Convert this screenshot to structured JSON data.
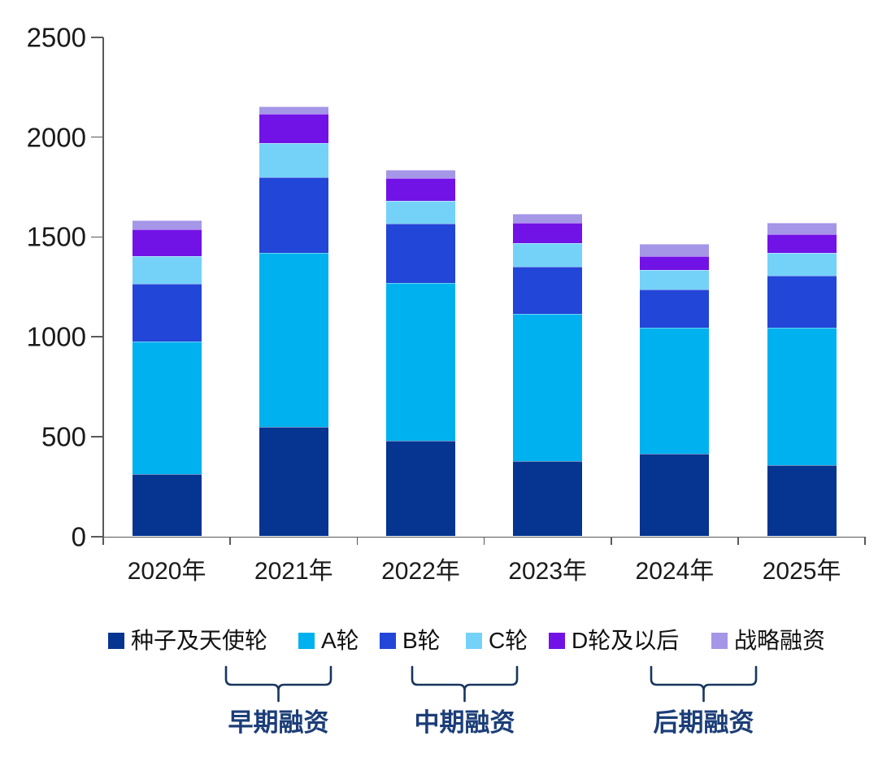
{
  "chart_data": {
    "type": "bar",
    "stacked": true,
    "title": "",
    "xlabel": "",
    "ylabel": "",
    "categories": [
      "2020年",
      "2021年",
      "2022年",
      "2023年",
      "2024年",
      "2025年"
    ],
    "series": [
      {
        "name": "种子及天使轮",
        "color": "#053491",
        "values": [
          310,
          550,
          480,
          375,
          415,
          355
        ]
      },
      {
        "name": "A轮",
        "color": "#00b1ef",
        "values": [
          665,
          870,
          790,
          740,
          630,
          690
        ]
      },
      {
        "name": "B轮",
        "color": "#2246d7",
        "values": [
          290,
          380,
          295,
          235,
          190,
          260
        ]
      },
      {
        "name": "C轮",
        "color": "#74d2f9",
        "values": [
          140,
          170,
          115,
          120,
          100,
          115
        ]
      },
      {
        "name": "D轮及以后",
        "color": "#7113e6",
        "values": [
          135,
          145,
          115,
          100,
          70,
          95
        ]
      },
      {
        "name": "战略融资",
        "color": "#a596e8",
        "values": [
          45,
          40,
          40,
          45,
          60,
          55
        ]
      }
    ],
    "ylim": [
      0,
      2500
    ],
    "yticks": [
      0,
      500,
      1000,
      1500,
      2000,
      2500
    ],
    "grid": false,
    "legend_position": "bottom",
    "groups": [
      {
        "label": "早期融资",
        "items": [
          "种子及天使轮",
          "A轮"
        ]
      },
      {
        "label": "中期融资",
        "items": [
          "B轮",
          "C轮"
        ]
      },
      {
        "label": "后期融资",
        "items": [
          "D轮及以后",
          "战略融资"
        ]
      }
    ]
  },
  "colors": {
    "axis": "#595959",
    "tick_text": "#1a1a1a",
    "legend_text": "#111111",
    "group_label": "#1c3e78",
    "bracket": "#17365d",
    "background": "#ffffff"
  }
}
